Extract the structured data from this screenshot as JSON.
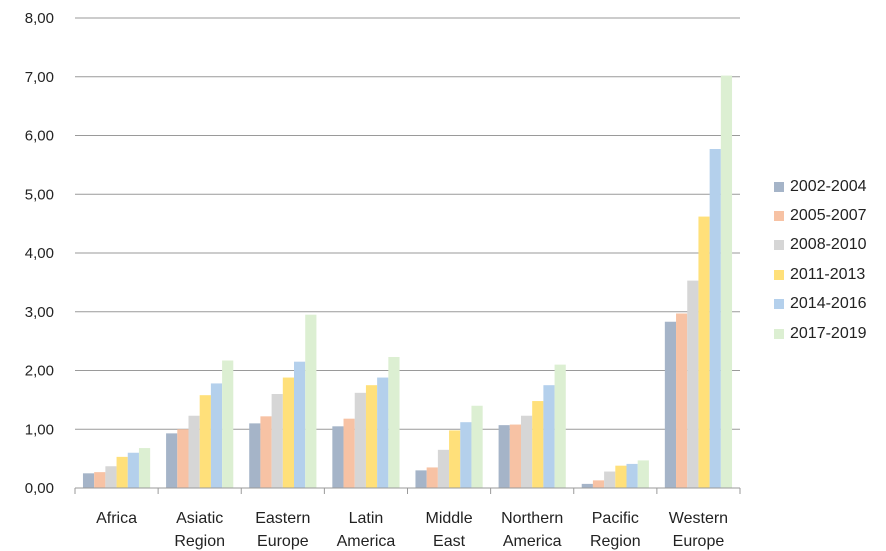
{
  "chart_data": {
    "type": "bar",
    "categories": [
      [
        "Africa"
      ],
      [
        "Asiatic",
        "Region"
      ],
      [
        "Eastern",
        "Europe"
      ],
      [
        "Latin",
        "America"
      ],
      [
        "Middle",
        "East"
      ],
      [
        "Northern",
        "America"
      ],
      [
        "Pacific",
        "Region"
      ],
      [
        "Western",
        "Europe"
      ]
    ],
    "series": [
      {
        "name": "2002-2004",
        "color": "#a5b4c8",
        "values": [
          0.25,
          0.93,
          1.1,
          1.05,
          0.3,
          1.07,
          0.07,
          2.83
        ]
      },
      {
        "name": "2005-2007",
        "color": "#f7c2a4",
        "values": [
          0.27,
          1.0,
          1.22,
          1.18,
          0.35,
          1.08,
          0.13,
          2.97
        ]
      },
      {
        "name": "2008-2010",
        "color": "#d6d6d6",
        "values": [
          0.37,
          1.23,
          1.6,
          1.62,
          0.65,
          1.23,
          0.28,
          3.53
        ]
      },
      {
        "name": "2011-2013",
        "color": "#ffe07a",
        "values": [
          0.53,
          1.58,
          1.88,
          1.75,
          0.98,
          1.48,
          0.38,
          4.62
        ]
      },
      {
        "name": "2014-2016",
        "color": "#b4d0ec",
        "values": [
          0.6,
          1.78,
          2.15,
          1.88,
          1.12,
          1.75,
          0.41,
          5.77
        ]
      },
      {
        "name": "2017-2019",
        "color": "#dcefd2",
        "values": [
          0.68,
          2.17,
          2.95,
          2.23,
          1.4,
          2.1,
          0.47,
          7.02
        ]
      }
    ],
    "yticks": [
      "0,00",
      "1,00",
      "2,00",
      "3,00",
      "4,00",
      "5,00",
      "6,00",
      "7,00",
      "8,00"
    ],
    "ylim": [
      0,
      8
    ],
    "grid": true,
    "legend_position": "right"
  }
}
